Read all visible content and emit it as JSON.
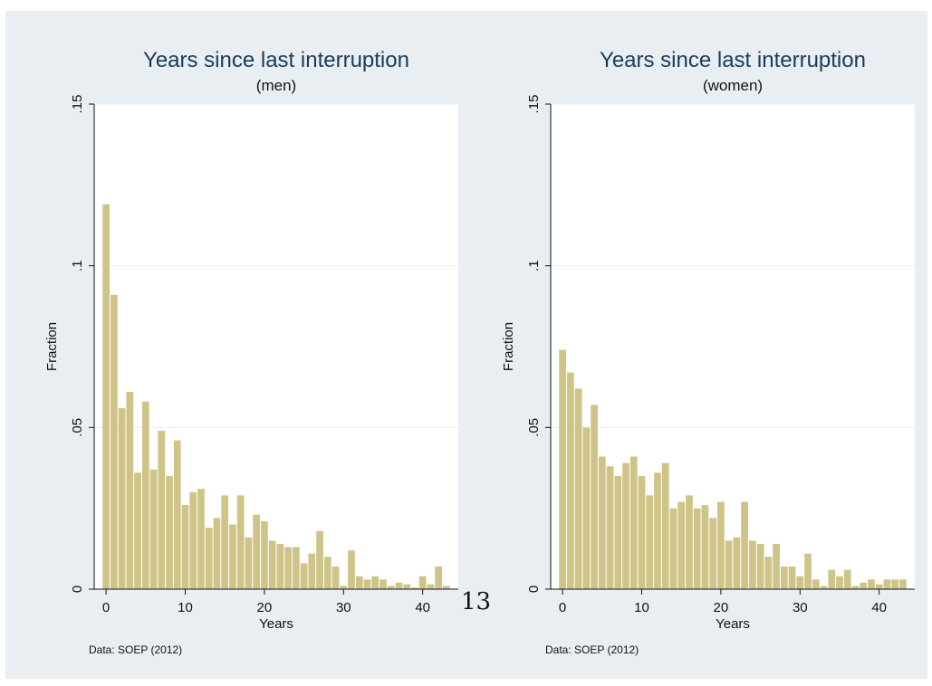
{
  "page_number": "13",
  "chart_data": [
    {
      "type": "bar",
      "title": "Years since last interruption",
      "subtitle": "(men)",
      "xlabel": "Years",
      "ylabel": "Fraction",
      "note": "Data: SOEP (2012)",
      "xlim": [
        -1.5,
        44.5
      ],
      "ylim": [
        0,
        0.15
      ],
      "xticks": [
        0,
        10,
        20,
        30,
        40
      ],
      "xtick_labels": [
        "0",
        "10",
        "20",
        "30",
        "40"
      ],
      "yticks": [
        0,
        0.05,
        0.1,
        0.15
      ],
      "ytick_labels": [
        "0",
        ".05",
        ".1",
        ".15"
      ],
      "grid": true,
      "bar_color": "#cfc488",
      "x": [
        0,
        1,
        2,
        3,
        4,
        5,
        6,
        7,
        8,
        9,
        10,
        11,
        12,
        13,
        14,
        15,
        16,
        17,
        18,
        19,
        20,
        21,
        22,
        23,
        24,
        25,
        26,
        27,
        28,
        29,
        30,
        31,
        32,
        33,
        34,
        35,
        36,
        37,
        38,
        39,
        40,
        41,
        42,
        43
      ],
      "values": [
        0.119,
        0.091,
        0.056,
        0.061,
        0.036,
        0.058,
        0.037,
        0.049,
        0.035,
        0.046,
        0.026,
        0.03,
        0.031,
        0.019,
        0.022,
        0.029,
        0.02,
        0.029,
        0.016,
        0.023,
        0.021,
        0.015,
        0.014,
        0.013,
        0.013,
        0.008,
        0.011,
        0.018,
        0.01,
        0.007,
        0.001,
        0.012,
        0.004,
        0.003,
        0.004,
        0.003,
        0.001,
        0.002,
        0.0015,
        0.0005,
        0.004,
        0.0015,
        0.007,
        0.001
      ]
    },
    {
      "type": "bar",
      "title": "Years since last interruption",
      "subtitle": "(women)",
      "xlabel": "Years",
      "ylabel": "Fraction",
      "note": "Data: SOEP (2012)",
      "xlim": [
        -1.5,
        44.5
      ],
      "ylim": [
        0,
        0.15
      ],
      "xticks": [
        0,
        10,
        20,
        30,
        40
      ],
      "xtick_labels": [
        "0",
        "10",
        "20",
        "30",
        "40"
      ],
      "yticks": [
        0,
        0.05,
        0.1,
        0.15
      ],
      "ytick_labels": [
        "0",
        ".05",
        ".1",
        ".15"
      ],
      "grid": true,
      "bar_color": "#cfc488",
      "x": [
        0,
        1,
        2,
        3,
        4,
        5,
        6,
        7,
        8,
        9,
        10,
        11,
        12,
        13,
        14,
        15,
        16,
        17,
        18,
        19,
        20,
        21,
        22,
        23,
        24,
        25,
        26,
        27,
        28,
        29,
        30,
        31,
        32,
        33,
        34,
        35,
        36,
        37,
        38,
        39,
        40,
        41,
        42,
        43
      ],
      "values": [
        0.074,
        0.067,
        0.062,
        0.05,
        0.057,
        0.041,
        0.038,
        0.035,
        0.039,
        0.041,
        0.035,
        0.029,
        0.036,
        0.039,
        0.025,
        0.027,
        0.029,
        0.025,
        0.026,
        0.022,
        0.027,
        0.015,
        0.016,
        0.027,
        0.015,
        0.014,
        0.01,
        0.014,
        0.007,
        0.007,
        0.004,
        0.011,
        0.003,
        0.001,
        0.006,
        0.004,
        0.006,
        0.001,
        0.002,
        0.003,
        0.0015,
        0.003,
        0.003,
        0.003
      ]
    }
  ]
}
